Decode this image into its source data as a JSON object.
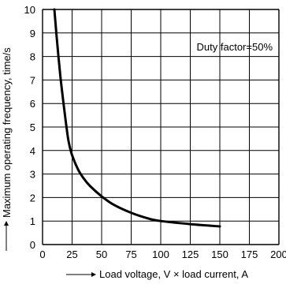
{
  "chart_data": {
    "type": "line",
    "xlabel": "Load voltage, V × load current, A",
    "ylabel": "Maximum operating frequency, time/s",
    "xlim": [
      0,
      200
    ],
    "ylim": [
      0,
      10
    ],
    "x_ticks": [
      0,
      25,
      50,
      75,
      100,
      125,
      150,
      175,
      200
    ],
    "y_ticks": [
      0,
      1,
      2,
      3,
      4,
      5,
      6,
      7,
      8,
      9,
      10
    ],
    "grid": true,
    "annotation": "Duty factor=50%",
    "series": [
      {
        "x": [
          10,
          12,
          15,
          18,
          20,
          22,
          25,
          30,
          35,
          40,
          50,
          60,
          75,
          90,
          100,
          125,
          150
        ],
        "y": [
          10,
          8.8,
          7.2,
          5.9,
          5.1,
          4.4,
          3.8,
          3.2,
          2.8,
          2.5,
          2.05,
          1.7,
          1.35,
          1.1,
          1.0,
          0.87,
          0.77
        ]
      }
    ]
  }
}
